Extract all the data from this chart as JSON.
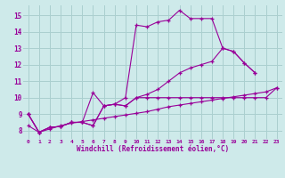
{
  "xlabel": "Windchill (Refroidissement éolien,°C)",
  "background_color": "#ceeaea",
  "grid_color": "#aacfcf",
  "line_color": "#990099",
  "xlim": [
    -0.5,
    23.5
  ],
  "ylim": [
    7.5,
    15.6
  ],
  "xticks": [
    0,
    1,
    2,
    3,
    4,
    5,
    6,
    7,
    8,
    9,
    10,
    11,
    12,
    13,
    14,
    15,
    16,
    17,
    18,
    19,
    20,
    21,
    22,
    23
  ],
  "yticks": [
    8,
    9,
    10,
    11,
    12,
    13,
    14,
    15
  ],
  "line1_x": [
    0,
    1,
    2,
    3,
    4,
    5,
    6,
    7,
    8,
    9,
    10,
    11,
    12,
    13,
    14,
    15,
    16,
    17,
    18,
    19,
    20,
    21
  ],
  "line1_y": [
    9.0,
    7.9,
    8.2,
    8.25,
    8.5,
    8.5,
    8.3,
    9.5,
    9.6,
    10.0,
    14.4,
    14.3,
    14.6,
    14.7,
    15.3,
    14.8,
    14.8,
    14.8,
    13.0,
    12.8,
    12.1,
    11.5
  ],
  "line2_x": [
    0,
    1,
    2,
    3,
    4,
    5,
    6,
    7,
    8,
    9,
    10,
    11,
    12,
    13,
    14,
    15,
    16,
    17,
    18,
    19,
    20,
    21,
    22,
    23
  ],
  "line2_y": [
    9.0,
    7.9,
    8.2,
    8.25,
    8.5,
    8.5,
    8.3,
    9.5,
    9.6,
    9.5,
    10.0,
    10.0,
    10.0,
    10.0,
    10.0,
    10.0,
    10.0,
    10.0,
    10.0,
    10.0,
    10.0,
    10.0,
    10.0,
    10.6
  ],
  "line3_x": [
    0,
    1,
    2,
    3,
    4,
    5,
    6,
    7,
    8,
    9,
    10,
    11,
    12,
    13,
    14,
    15,
    16,
    17,
    18,
    19,
    20,
    21
  ],
  "line3_y": [
    9.0,
    7.9,
    8.2,
    8.25,
    8.5,
    8.5,
    10.3,
    9.5,
    9.6,
    9.5,
    10.0,
    10.2,
    10.5,
    11.0,
    11.5,
    11.8,
    12.0,
    12.2,
    13.0,
    12.8,
    12.1,
    11.5
  ],
  "line4_x": [
    0,
    1,
    2,
    3,
    4,
    5,
    6,
    7,
    8,
    9,
    10,
    11,
    12,
    13,
    14,
    15,
    16,
    17,
    18,
    19,
    20,
    21,
    22,
    23
  ],
  "line4_y": [
    8.3,
    7.9,
    8.1,
    8.3,
    8.45,
    8.55,
    8.65,
    8.75,
    8.85,
    8.95,
    9.05,
    9.15,
    9.3,
    9.45,
    9.55,
    9.65,
    9.75,
    9.85,
    9.95,
    10.05,
    10.15,
    10.25,
    10.35,
    10.6
  ]
}
